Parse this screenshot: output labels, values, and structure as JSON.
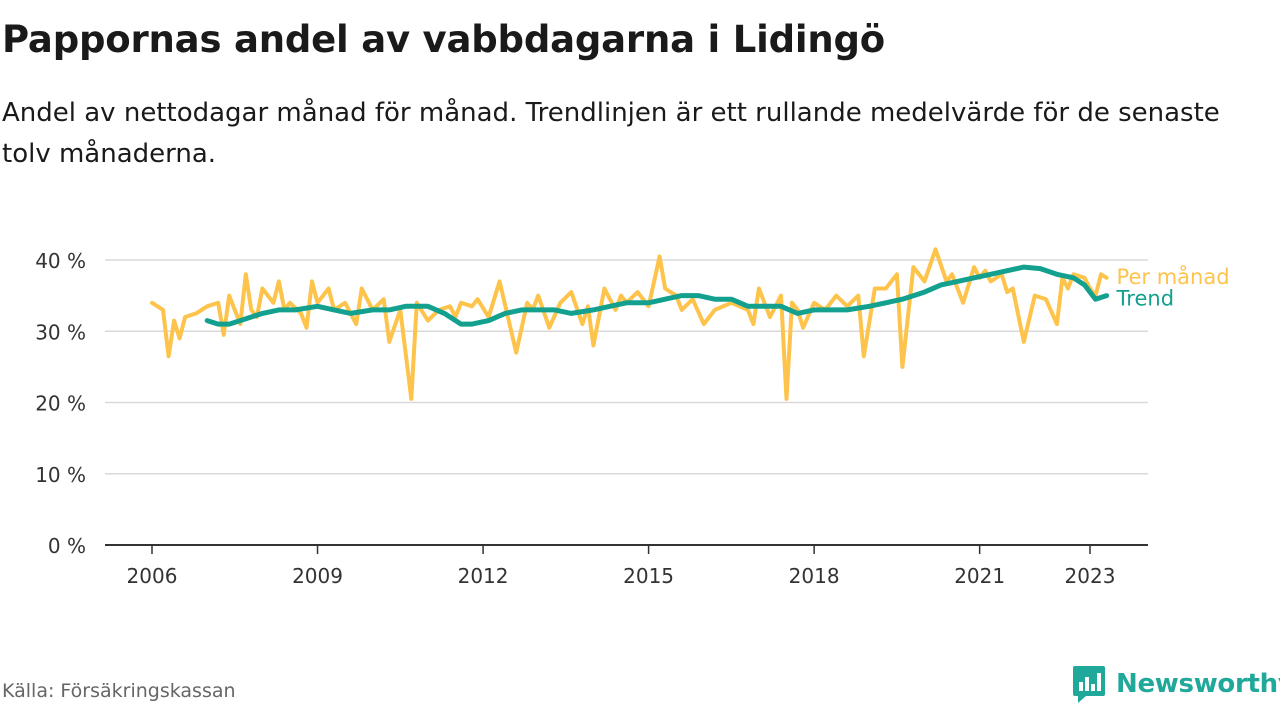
{
  "title": "Pappornas andel av vabbdagarna i Lidingö",
  "subtitle": "Andel av nettodagar månad för månad. Trendlinjen är ett rullande medelvärde för de senaste tolv månaderna.",
  "source": "Källa: Försäkringskassan",
  "brand": {
    "name": "Newsworthy",
    "icon": "newsworthy-logo-icon"
  },
  "colors": {
    "monthly": "#fdc34a",
    "trend": "#13a08f",
    "grid": "#d9d9d9",
    "axis": "#333333",
    "text": "#333333"
  },
  "chart_data": {
    "type": "line",
    "ylim": [
      0,
      42
    ],
    "y_ticks": [
      0,
      10,
      20,
      30,
      40
    ],
    "y_tick_labels": [
      "0 %",
      "10 %",
      "20 %",
      "30 %",
      "40 %"
    ],
    "x_ticks": [
      2006,
      2009,
      2012,
      2015,
      2018,
      2021,
      2023
    ],
    "x_tick_labels": [
      "2006",
      "2009",
      "2012",
      "2015",
      "2018",
      "2021",
      "2023"
    ],
    "grid": "horizontal",
    "legend": "direct labels at line ends",
    "series": [
      {
        "name": "Per månad",
        "x": [
          2006.0,
          2006.1,
          2006.2,
          2006.3,
          2006.4,
          2006.5,
          2006.6,
          2006.8,
          2007.0,
          2007.2,
          2007.3,
          2007.4,
          2007.6,
          2007.7,
          2007.8,
          2007.9,
          2008.0,
          2008.2,
          2008.3,
          2008.4,
          2008.5,
          2008.7,
          2008.8,
          2008.9,
          2009.0,
          2009.2,
          2009.3,
          2009.5,
          2009.7,
          2009.8,
          2010.0,
          2010.2,
          2010.3,
          2010.5,
          2010.7,
          2010.8,
          2011.0,
          2011.2,
          2011.4,
          2011.5,
          2011.6,
          2011.8,
          2011.9,
          2012.1,
          2012.3,
          2012.6,
          2012.8,
          2012.9,
          2013.0,
          2013.2,
          2013.4,
          2013.6,
          2013.8,
          2013.9,
          2014.0,
          2014.2,
          2014.4,
          2014.5,
          2014.6,
          2014.8,
          2015.0,
          2015.2,
          2015.3,
          2015.5,
          2015.6,
          2015.8,
          2016.0,
          2016.2,
          2016.5,
          2016.8,
          2016.9,
          2017.0,
          2017.2,
          2017.4,
          2017.5,
          2017.6,
          2017.7,
          2017.8,
          2018.0,
          2018.2,
          2018.4,
          2018.6,
          2018.8,
          2018.9,
          2019.1,
          2019.3,
          2019.5,
          2019.6,
          2019.8,
          2020.0,
          2020.2,
          2020.4,
          2020.5,
          2020.7,
          2020.9,
          2021.0,
          2021.1,
          2021.2,
          2021.4,
          2021.5,
          2021.6,
          2021.8,
          2022.0,
          2022.2,
          2022.4,
          2022.5,
          2022.6,
          2022.7,
          2022.9,
          2023.0,
          2023.1,
          2023.2,
          2023.3
        ],
        "values": [
          34,
          33.5,
          33,
          26.5,
          31.5,
          29,
          32,
          32.5,
          33.5,
          34,
          29.5,
          35,
          31,
          38,
          33,
          32,
          36,
          34,
          37,
          33,
          34,
          32.5,
          30.5,
          37,
          34,
          36,
          33,
          34,
          31,
          36,
          33,
          34.5,
          28.5,
          33,
          20.5,
          34,
          31.5,
          33,
          33.5,
          32,
          34,
          33.5,
          34.5,
          32,
          37,
          27,
          34,
          33,
          35,
          30.5,
          34,
          35.5,
          31,
          33.5,
          28,
          36,
          33,
          35,
          34,
          35.5,
          33.5,
          40.5,
          36,
          35,
          33,
          34.5,
          31,
          33,
          34,
          33,
          31,
          36,
          32,
          35,
          20.5,
          34,
          33,
          30.5,
          34,
          33,
          35,
          33.5,
          35,
          26.5,
          36,
          36,
          38,
          25,
          39,
          37,
          41.5,
          37,
          38,
          34,
          39,
          37.5,
          38.5,
          37,
          38,
          35.5,
          36,
          28.5,
          35,
          34.5,
          31,
          37.5,
          36,
          38,
          37.5,
          36,
          35,
          38,
          37.5
        ]
      },
      {
        "name": "Trend",
        "x": [
          2007.0,
          2007.2,
          2007.4,
          2007.6,
          2007.8,
          2008.0,
          2008.3,
          2008.6,
          2009.0,
          2009.3,
          2009.6,
          2010.0,
          2010.3,
          2010.6,
          2011.0,
          2011.3,
          2011.6,
          2011.8,
          2012.1,
          2012.4,
          2012.7,
          2013.0,
          2013.3,
          2013.6,
          2014.0,
          2014.3,
          2014.6,
          2015.0,
          2015.3,
          2015.6,
          2015.9,
          2016.2,
          2016.5,
          2016.8,
          2017.1,
          2017.4,
          2017.7,
          2018.0,
          2018.3,
          2018.6,
          2019.0,
          2019.3,
          2019.6,
          2020.0,
          2020.3,
          2020.6,
          2020.9,
          2021.2,
          2021.5,
          2021.8,
          2022.1,
          2022.4,
          2022.7,
          2022.9,
          2023.0,
          2023.1,
          2023.3
        ],
        "values": [
          31.5,
          31,
          31,
          31.5,
          32,
          32.5,
          33,
          33,
          33.5,
          33,
          32.5,
          33,
          33,
          33.5,
          33.5,
          32.5,
          31,
          31,
          31.5,
          32.5,
          33,
          33,
          33,
          32.5,
          33,
          33.5,
          34,
          34,
          34.5,
          35,
          35,
          34.5,
          34.5,
          33.5,
          33.5,
          33.5,
          32.5,
          33,
          33,
          33,
          33.5,
          34,
          34.5,
          35.5,
          36.5,
          37,
          37.5,
          38,
          38.5,
          39,
          38.8,
          38,
          37.5,
          36.5,
          35.5,
          34.5,
          35
        ]
      }
    ]
  }
}
